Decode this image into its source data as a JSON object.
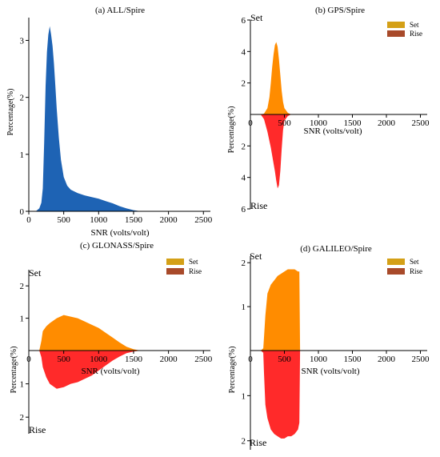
{
  "chart_data": [
    {
      "id": "a",
      "type": "area",
      "title": "(a) ALL/Spire",
      "xlabel": "SNR (volts/volt)",
      "ylabel": "Percentage(%)",
      "xlim": [
        0,
        2600
      ],
      "ylim": [
        0,
        3.4
      ],
      "xticks": [
        "0",
        "500",
        "1000",
        "1500",
        "2000",
        "2500"
      ],
      "yticks": [
        "0",
        "1",
        "2",
        "3"
      ],
      "colors": {
        "fill": "#1e63b4"
      },
      "series": [
        {
          "x": [
            100,
            150,
            180,
            200,
            220,
            240,
            260,
            280,
            300,
            320,
            340,
            360,
            380,
            400,
            430,
            460,
            500,
            550,
            600,
            700,
            800,
            900,
            1000,
            1100,
            1200,
            1300,
            1400,
            1500,
            1550,
            1600
          ],
          "y": [
            0,
            0.05,
            0.15,
            0.4,
            1.2,
            2.2,
            2.8,
            3.1,
            3.25,
            3.1,
            2.9,
            2.6,
            2.2,
            1.8,
            1.3,
            0.9,
            0.6,
            0.45,
            0.38,
            0.32,
            0.28,
            0.25,
            0.22,
            0.18,
            0.14,
            0.09,
            0.05,
            0.02,
            0.01,
            0
          ]
        }
      ]
    },
    {
      "id": "b",
      "type": "area",
      "title": "(b) GPS/Spire",
      "xlabel": "SNR (volts/volt)",
      "ylabel": "Percentage(%)",
      "xlim": [
        0,
        2600
      ],
      "ylim_top": [
        0,
        6
      ],
      "ylim_bottom": [
        0,
        6
      ],
      "xticks": [
        "0",
        "500",
        "1000",
        "1500",
        "2000",
        "2500"
      ],
      "yticks_top": [
        "2",
        "4",
        "6"
      ],
      "yticks_bottom": [
        "2",
        "4",
        "6"
      ],
      "top_label": "Set",
      "bottom_label": "Rise",
      "legend": [
        {
          "name": "Set",
          "color": "#d4a017"
        },
        {
          "name": "Rise",
          "color": "#a84a2a"
        }
      ],
      "colors": {
        "set": "#ff8c00",
        "rise": "#ff2a2a"
      },
      "series": [
        {
          "name": "Set",
          "x": [
            150,
            200,
            250,
            280,
            300,
            320,
            340,
            360,
            380,
            400,
            420,
            440,
            460,
            480,
            500,
            550,
            600
          ],
          "y": [
            0,
            0.05,
            0.4,
            1.1,
            2.0,
            3.0,
            3.8,
            4.4,
            4.6,
            4.3,
            3.5,
            2.5,
            1.5,
            0.8,
            0.4,
            0.1,
            0
          ]
        },
        {
          "name": "Rise",
          "x": [
            150,
            200,
            250,
            280,
            300,
            320,
            340,
            360,
            380,
            400,
            420,
            440,
            460,
            480,
            500,
            550,
            600
          ],
          "y": [
            0,
            0.3,
            1.1,
            1.7,
            2.1,
            2.6,
            3.1,
            3.6,
            4.2,
            4.7,
            4.5,
            3.6,
            2.2,
            1.0,
            0.4,
            0.1,
            0
          ]
        }
      ]
    },
    {
      "id": "c",
      "type": "area",
      "title": "(c) GLONASS/Spire",
      "xlabel": "SNR (volts/volt)",
      "ylabel": "Percentage(%)",
      "xlim": [
        0,
        2600
      ],
      "ylim_top": [
        0,
        2.5
      ],
      "ylim_bottom": [
        0,
        2.5
      ],
      "xticks": [
        "0",
        "500",
        "1000",
        "1500",
        "2000",
        "2500"
      ],
      "yticks_top": [
        "1",
        "2"
      ],
      "yticks_bottom": [
        "1",
        "2"
      ],
      "top_label": "Set",
      "bottom_label": "Rise",
      "legend": [
        {
          "name": "Set",
          "color": "#d4a017"
        },
        {
          "name": "Rise",
          "color": "#a84a2a"
        }
      ],
      "colors": {
        "set": "#ff8c00",
        "rise": "#ff2a2a"
      },
      "series": [
        {
          "name": "Set",
          "x": [
            150,
            180,
            200,
            250,
            300,
            400,
            500,
            600,
            700,
            800,
            900,
            1000,
            1100,
            1200,
            1300,
            1400,
            1500,
            1600
          ],
          "y": [
            0,
            0.3,
            0.6,
            0.75,
            0.85,
            1.0,
            1.1,
            1.05,
            1.0,
            0.9,
            0.8,
            0.7,
            0.55,
            0.4,
            0.25,
            0.12,
            0.04,
            0
          ]
        },
        {
          "name": "Rise",
          "x": [
            150,
            180,
            200,
            250,
            300,
            400,
            500,
            600,
            700,
            800,
            900,
            1000,
            1100,
            1200,
            1300,
            1400,
            1500,
            1600
          ],
          "y": [
            0,
            0.2,
            0.5,
            0.8,
            1.0,
            1.15,
            1.1,
            1.0,
            0.95,
            0.85,
            0.75,
            0.6,
            0.45,
            0.3,
            0.18,
            0.08,
            0.03,
            0
          ]
        }
      ]
    },
    {
      "id": "d",
      "type": "area",
      "title": "(d) GALILEO/Spire",
      "xlabel": "SNR (volts/volt)",
      "ylabel": "Percentage(%)",
      "xlim": [
        0,
        2600
      ],
      "ylim_top": [
        0,
        2.15
      ],
      "ylim_bottom": [
        0,
        2.2
      ],
      "xticks": [
        "0",
        "500",
        "1000",
        "1500",
        "2000",
        "2500"
      ],
      "yticks_top": [
        "1",
        "2"
      ],
      "yticks_bottom": [
        "1",
        "2"
      ],
      "top_label": "Set",
      "bottom_label": "Rise",
      "legend": [
        {
          "name": "Set",
          "color": "#d4a017"
        },
        {
          "name": "Rise",
          "color": "#a84a2a"
        }
      ],
      "colors": {
        "set": "#ff8c00",
        "rise": "#ff2a2a"
      },
      "series": [
        {
          "name": "Set",
          "x": [
            150,
            190,
            200,
            220,
            250,
            300,
            350,
            400,
            450,
            500,
            550,
            600,
            650,
            700,
            720,
            730
          ],
          "y": [
            0,
            0.05,
            0.3,
            0.8,
            1.3,
            1.5,
            1.6,
            1.7,
            1.75,
            1.8,
            1.85,
            1.85,
            1.85,
            1.8,
            1.8,
            0
          ]
        },
        {
          "name": "Rise",
          "x": [
            150,
            190,
            200,
            220,
            250,
            300,
            350,
            400,
            450,
            500,
            550,
            600,
            650,
            700,
            720,
            730
          ],
          "y": [
            0,
            0.05,
            0.5,
            1.2,
            1.5,
            1.75,
            1.85,
            1.9,
            1.95,
            1.95,
            1.9,
            1.9,
            1.85,
            1.75,
            1.6,
            0
          ]
        }
      ]
    }
  ]
}
